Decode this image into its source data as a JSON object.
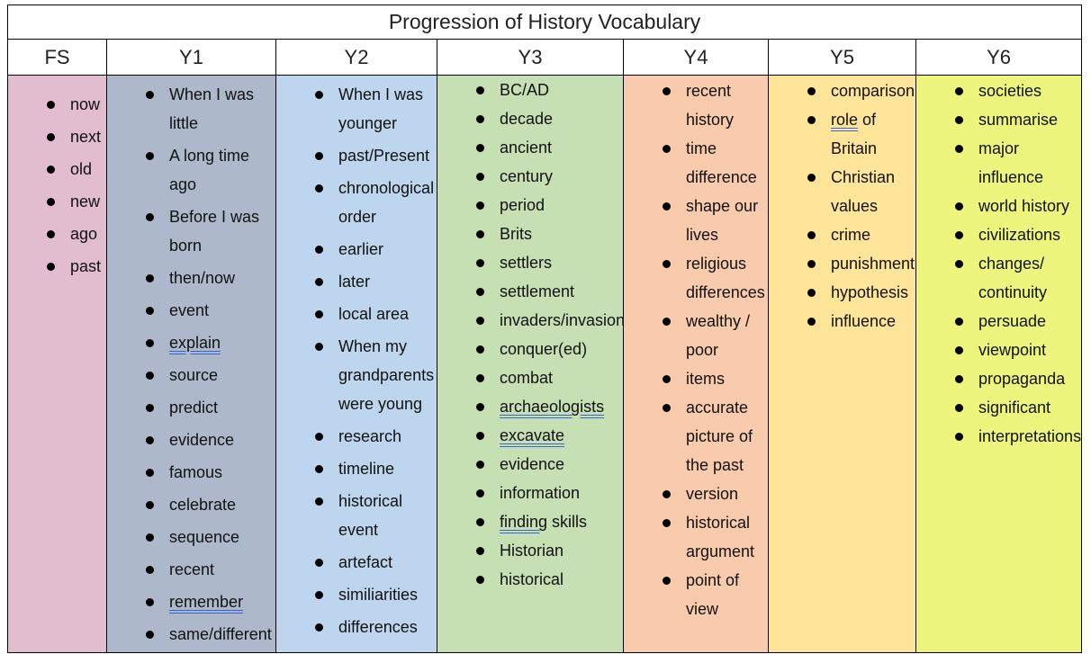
{
  "title": "Progression of History Vocabulary",
  "columns": [
    {
      "label": "FS",
      "color": "#e2bdd0",
      "gap": true,
      "items": [
        {
          "text": "now"
        },
        {
          "text": "next"
        },
        {
          "text": "old"
        },
        {
          "text": "new"
        },
        {
          "text": "ago"
        },
        {
          "text": "past"
        }
      ]
    },
    {
      "label": "Y1",
      "color": "#adb9ca",
      "gap": true,
      "items": [
        {
          "text": "When I was little"
        },
        {
          "text": "A long time ago"
        },
        {
          "text": "Before I was born"
        },
        {
          "text": "then/now"
        },
        {
          "text": "event"
        },
        {
          "u": "explain",
          "text": ""
        },
        {
          "text": "source"
        },
        {
          "text": "predict"
        },
        {
          "text": "evidence"
        },
        {
          "text": "famous"
        },
        {
          "text": "celebrate"
        },
        {
          "text": "sequence"
        },
        {
          "text": "recent"
        },
        {
          "u": "remember",
          "text": ""
        },
        {
          "text": "same/different"
        }
      ]
    },
    {
      "label": "Y2",
      "color": "#bdd6ee",
      "gap": true,
      "items": [
        {
          "text": "When I was younger"
        },
        {
          "text": "past/Present"
        },
        {
          "text": "chronological order"
        },
        {
          "text": "earlier"
        },
        {
          "text": "later"
        },
        {
          "text": "local area"
        },
        {
          "text": "When my grandparents were young"
        },
        {
          "text": "research"
        },
        {
          "text": "timeline"
        },
        {
          "text": "historical event"
        },
        {
          "text": "artefact"
        },
        {
          "text": "similiarities"
        },
        {
          "text": "differences"
        }
      ]
    },
    {
      "label": "Y3",
      "color": "#c6e0b4",
      "gap": false,
      "items": [
        {
          "text": "BC/AD"
        },
        {
          "text": "decade"
        },
        {
          "text": "ancient"
        },
        {
          "text": "century"
        },
        {
          "text": "period"
        },
        {
          "text": "Brits"
        },
        {
          "text": "settlers"
        },
        {
          "text": "settlement"
        },
        {
          "text": "invaders/invasion"
        },
        {
          "text": "conquer(ed)"
        },
        {
          "text": "combat"
        },
        {
          "u": "archaeologists",
          "text": ""
        },
        {
          "u": "excavate",
          "text": ""
        },
        {
          "text": "evidence"
        },
        {
          "text": "information"
        },
        {
          "u": "finding",
          "text": " skills"
        },
        {
          "text": "Historian"
        },
        {
          "text": "historical"
        }
      ]
    },
    {
      "label": "Y4",
      "color": "#f8cbad",
      "gap": false,
      "items": [
        {
          "text": "recent history"
        },
        {
          "text": "time difference"
        },
        {
          "text": "shape our lives"
        },
        {
          "text": "religious differences"
        },
        {
          "text": "wealthy / poor"
        },
        {
          "text": "items"
        },
        {
          "text": "accurate picture of the past"
        },
        {
          "text": "version"
        },
        {
          "text": "historical argument"
        },
        {
          "text": "point of view"
        }
      ]
    },
    {
      "label": "Y5",
      "color": "#ffe599",
      "gap": false,
      "items": [
        {
          "text": "comparison"
        },
        {
          "u": "role",
          "text": " of Britain"
        },
        {
          "text": "Christian values"
        },
        {
          "text": "crime"
        },
        {
          "text": "punishment"
        },
        {
          "text": "hypothesis"
        },
        {
          "text": "influence"
        }
      ]
    },
    {
      "label": "Y6",
      "color": "#eef57c",
      "gap": false,
      "items": [
        {
          "text": "societies"
        },
        {
          "text": "summarise"
        },
        {
          "text": "major influence"
        },
        {
          "text": "world history"
        },
        {
          "text": "civilizations"
        },
        {
          "text": "changes/ continuity"
        },
        {
          "text": "persuade"
        },
        {
          "text": "viewpoint"
        },
        {
          "text": "propaganda"
        },
        {
          "text": "significant"
        },
        {
          "text": "interpretations"
        }
      ]
    }
  ]
}
